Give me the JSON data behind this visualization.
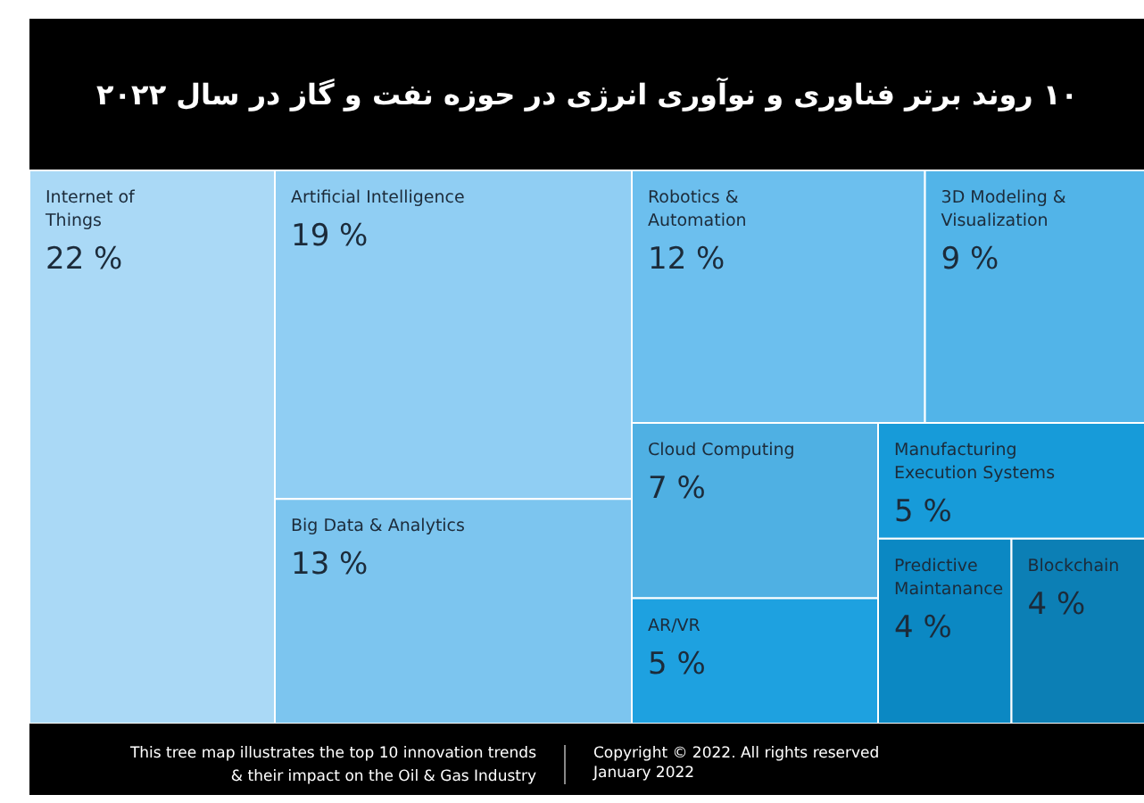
{
  "chart_data": {
    "type": "other",
    "title": "۱۰ روند برتر فناوری و نوآوری انرژی در حوزه نفت و گاز در سال ۲۰۲۲",
    "categories": [
      "Internet of Things",
      "Artificial Intelligence",
      "Big Data & Analytics",
      "Robotics & Automation",
      "3D Modeling & Visualization",
      "Cloud Computing",
      "AR/VR",
      "Manufacturing Execution Systems",
      "Predictive Maintanance",
      "Blockchain"
    ],
    "values": [
      22,
      19,
      13,
      12,
      9,
      7,
      5,
      5,
      4,
      4
    ],
    "value_labels": [
      "22 %",
      "19 %",
      "13 %",
      "12 %",
      "9 %",
      "7 %",
      "5 %",
      "5 %",
      "4 %",
      "4 %"
    ],
    "colors": [
      "#aad9f6",
      "#90cef3",
      "#7cc5ef",
      "#6cbfee",
      "#52b4e8",
      "#4fb0e3",
      "#1ea1e0",
      "#179bd9",
      "#0b88c3",
      "#0c7fb5"
    ],
    "annotations": [
      "This tree map illustrates the top 10 innovation trends & their impact on the Oil & Gas Industry",
      "Copyright © 2022. All rights reserved",
      "January 2022"
    ]
  }
}
